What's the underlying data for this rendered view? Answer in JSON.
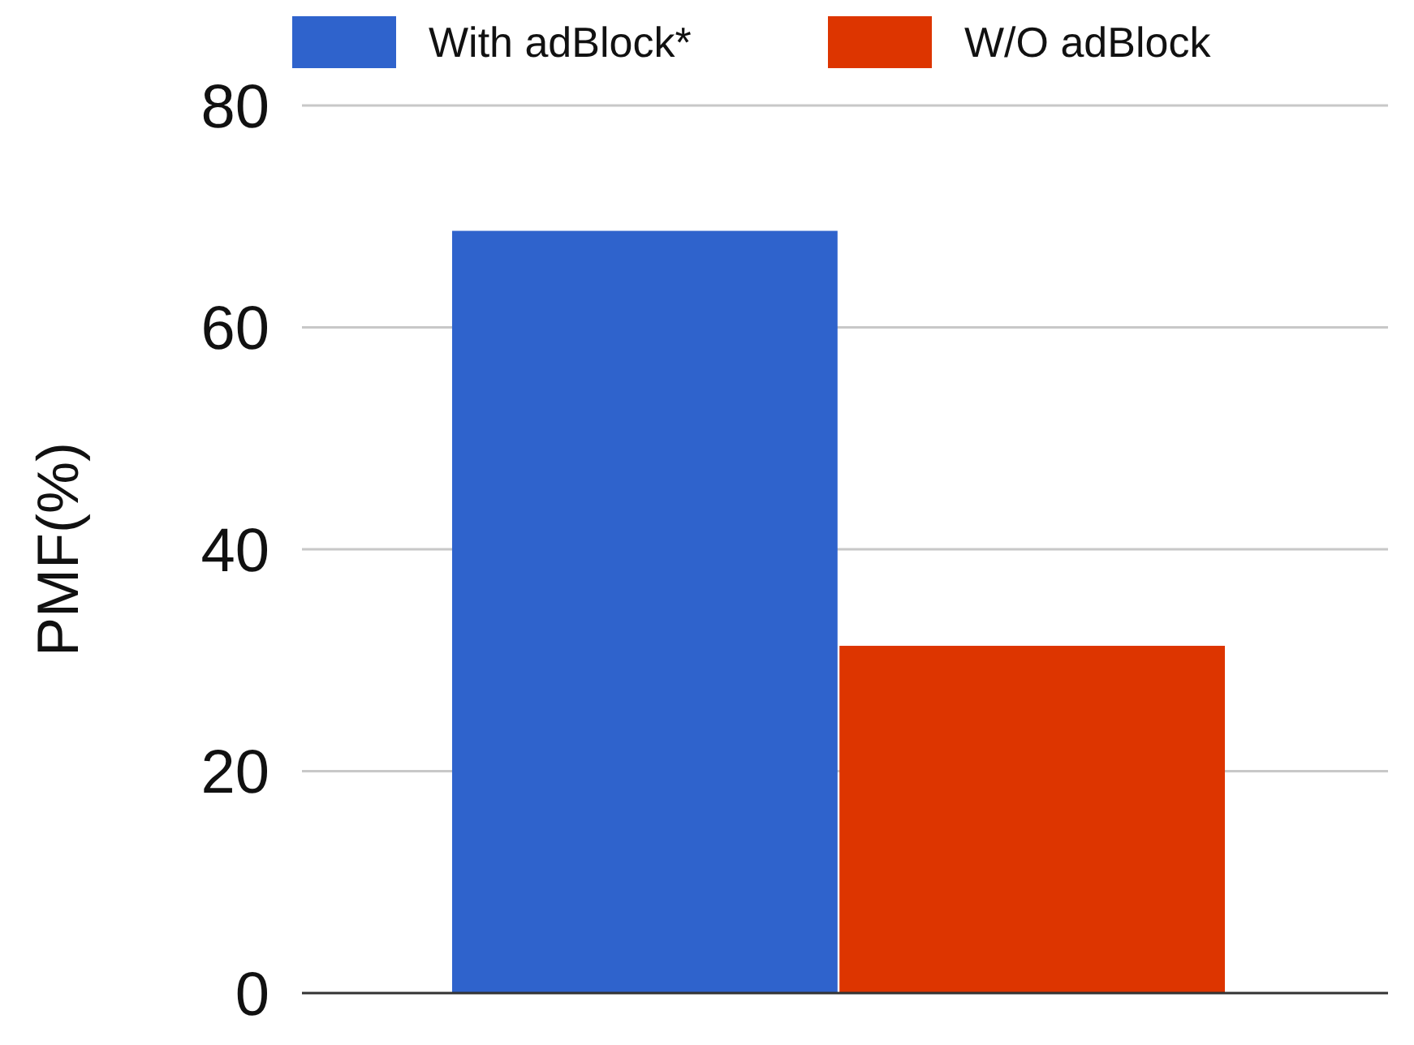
{
  "chart_data": {
    "type": "bar",
    "ylabel": "PMF(%)",
    "categories": [
      null
    ],
    "series": [
      {
        "name": "With adBlock*",
        "color": "#2f63cc",
        "values": [
          68.7
        ]
      },
      {
        "name": "W/O adBlock",
        "color": "#dd3500",
        "values": [
          31.3
        ]
      }
    ],
    "ylim": [
      0,
      80
    ],
    "yticks": [
      0,
      20,
      40,
      60,
      80
    ],
    "grid": "y",
    "legend": "top"
  }
}
